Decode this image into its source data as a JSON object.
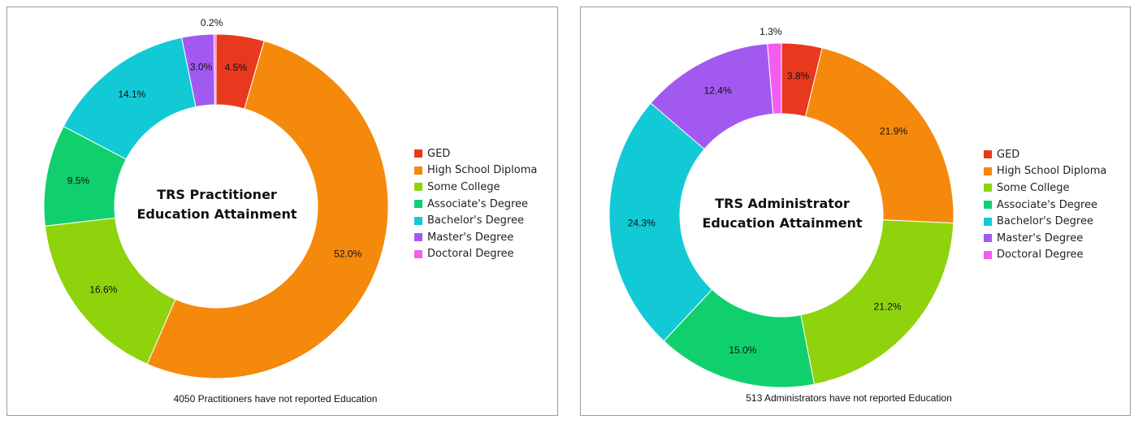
{
  "colors": {
    "GED": "#e8391e",
    "High School Diploma": "#f5890b",
    "Some College": "#8fd30d",
    "Associate's Degree": "#10d06e",
    "Bachelor's Degree": "#12c9d6",
    "Master's Degree": "#a259f0",
    "Doctoral Degree": "#f55cf0"
  },
  "chart_data": [
    {
      "type": "pie",
      "donut": true,
      "title": "TRS Practitioner Education Attainment",
      "title_lines": [
        "TRS Practitioner",
        "Education Attainment"
      ],
      "categories": [
        "GED",
        "High School Diploma",
        "Some College",
        "Associate's Degree",
        "Bachelor's Degree",
        "Master's Degree",
        "Doctoral Degree"
      ],
      "values": [
        4.5,
        52.0,
        16.6,
        9.5,
        14.1,
        3.0,
        0.2
      ],
      "value_labels": [
        "4.5%",
        "52.0%",
        "16.6%",
        "9.5%",
        "14.1%",
        "3.0%",
        "0.2%"
      ],
      "legend_position": "right",
      "footnote": "4050 Practitioners have not reported Education"
    },
    {
      "type": "pie",
      "donut": true,
      "title": "TRS Administrator Education Attainment",
      "title_lines": [
        "TRS Administrator",
        "Education Attainment"
      ],
      "categories": [
        "GED",
        "High School Diploma",
        "Some College",
        "Associate's Degree",
        "Bachelor's Degree",
        "Master's Degree",
        "Doctoral Degree"
      ],
      "values": [
        3.8,
        21.9,
        21.2,
        15.0,
        24.3,
        12.4,
        1.3
      ],
      "value_labels": [
        "3.8%",
        "21.9%",
        "21.2%",
        "15.0%",
        "24.3%",
        "12.4%",
        "1.3%"
      ],
      "legend_position": "right",
      "footnote": "513 Administrators have not reported Education"
    }
  ]
}
